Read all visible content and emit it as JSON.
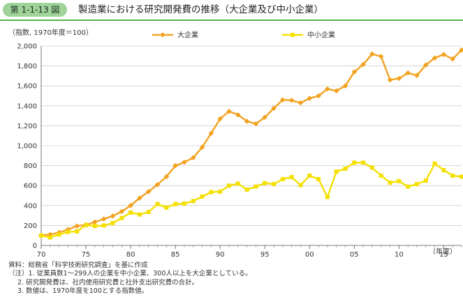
{
  "header": {
    "figure_number": "第 1-1-13 図",
    "title": "製造業における研究開発費の推移（大企業及び中小企業）",
    "accent_color": "#56b24e"
  },
  "chart_data": {
    "type": "line",
    "ylabel": "（指数, 1970年度＝100）",
    "xlabel": "（年度）",
    "ylim": [
      0,
      2000
    ],
    "yticks": [
      0,
      200,
      400,
      600,
      800,
      1000,
      1200,
      1400,
      1600,
      1800,
      2000
    ],
    "ytick_labels": [
      "0",
      "200",
      "400",
      "600",
      "800",
      "1,000",
      "1,200",
      "1,400",
      "1,600",
      "1,800",
      "2,000"
    ],
    "xtick_labels": [
      "70",
      "75",
      "80",
      "85",
      "90",
      "95",
      "00",
      "05",
      "10",
      "15"
    ],
    "xticks": [
      1970,
      1975,
      1980,
      1985,
      1990,
      1995,
      2000,
      2005,
      2010,
      2015
    ],
    "xlim": [
      1970,
      2017
    ],
    "grid": true,
    "legend_position": "top",
    "x": [
      1970,
      1971,
      1972,
      1973,
      1974,
      1975,
      1976,
      1977,
      1978,
      1979,
      1980,
      1981,
      1982,
      1983,
      1984,
      1985,
      1986,
      1987,
      1988,
      1989,
      1990,
      1991,
      1992,
      1993,
      1994,
      1995,
      1996,
      1997,
      1998,
      1999,
      2000,
      2001,
      2002,
      2003,
      2004,
      2005,
      2006,
      2007,
      2008,
      2009,
      2010,
      2011,
      2012,
      2013,
      2014,
      2015,
      2016,
      2017
    ],
    "series": [
      {
        "name": "大企業",
        "color": "#f2a21f",
        "marker": "diamond",
        "values": [
          100,
          110,
          130,
          160,
          195,
          205,
          235,
          265,
          295,
          340,
          400,
          475,
          540,
          610,
          690,
          800,
          835,
          880,
          985,
          1125,
          1270,
          1345,
          1310,
          1245,
          1220,
          1285,
          1375,
          1460,
          1455,
          1430,
          1475,
          1500,
          1570,
          1550,
          1600,
          1740,
          1815,
          1920,
          1895,
          1660,
          1675,
          1730,
          1705,
          1810,
          1880,
          1915,
          1870,
          1960
        ]
      },
      {
        "name": "中小企業",
        "color": "#f4e000",
        "marker": "square",
        "values": [
          100,
          80,
          110,
          135,
          140,
          205,
          195,
          200,
          225,
          275,
          330,
          310,
          335,
          415,
          380,
          415,
          420,
          445,
          490,
          535,
          540,
          600,
          620,
          560,
          590,
          625,
          615,
          665,
          685,
          605,
          700,
          665,
          485,
          740,
          770,
          830,
          830,
          780,
          700,
          630,
          645,
          590,
          615,
          650,
          820,
          755,
          700,
          690
        ]
      }
    ]
  },
  "notes": [
    "資料：総務省「科学技術研究調査」を基に作成",
    "（注）1. 従業員数1～299人の企業を中小企業、300人以上を大企業としている。",
    "2. 研究開発費は、社内使用研究費と社外支出研究費の合計。",
    "3. 数値は、1970年度を100とする指数値。"
  ]
}
